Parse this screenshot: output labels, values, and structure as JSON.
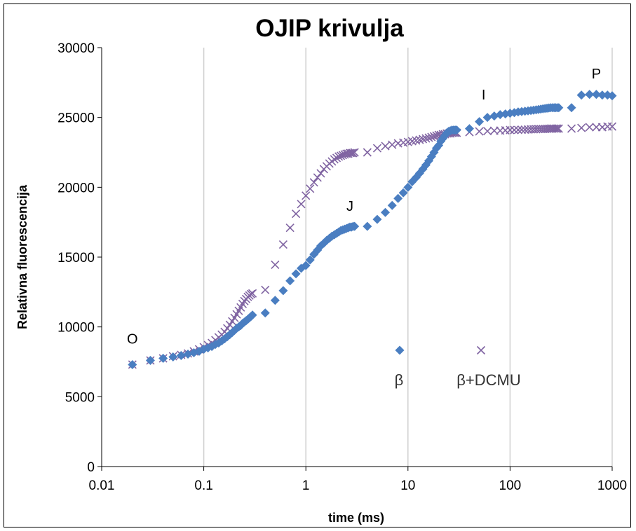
{
  "chart_data": {
    "type": "scatter",
    "title": "OJIP krivulja",
    "xlabel": "time (ms)",
    "ylabel": "Relativna fluorescencija",
    "xscale": "log",
    "xlim": [
      0.01,
      1000
    ],
    "ylim": [
      0,
      30000
    ],
    "xticks": [
      0.01,
      0.1,
      1,
      10,
      100,
      1000
    ],
    "xtick_labels": [
      "0.01",
      "0.1",
      "1",
      "10",
      "100",
      "1000"
    ],
    "yticks": [
      0,
      5000,
      10000,
      15000,
      20000,
      25000,
      30000
    ],
    "ytick_labels": [
      "0",
      "5000",
      "10000",
      "15000",
      "20000",
      "25000",
      "30000"
    ],
    "grid": "vertical",
    "legend_position": "inside-center-right",
    "series": [
      {
        "name": "β",
        "marker": "diamond",
        "color": "#4a7ec1",
        "x": [
          0.02,
          0.03,
          0.04,
          0.05,
          0.06,
          0.07,
          0.08,
          0.09,
          0.1,
          0.11,
          0.12,
          0.13,
          0.14,
          0.15,
          0.16,
          0.17,
          0.18,
          0.19,
          0.2,
          0.21,
          0.22,
          0.23,
          0.24,
          0.25,
          0.26,
          0.27,
          0.28,
          0.29,
          0.3,
          0.4,
          0.5,
          0.6,
          0.7,
          0.8,
          0.9,
          1.0,
          1.1,
          1.2,
          1.3,
          1.4,
          1.5,
          1.6,
          1.7,
          1.8,
          1.9,
          2.0,
          2.1,
          2.2,
          2.3,
          2.4,
          2.5,
          2.6,
          2.7,
          2.8,
          2.9,
          3.0,
          4,
          5,
          6,
          7,
          8,
          9,
          10,
          11,
          12,
          13,
          14,
          15,
          16,
          17,
          18,
          19,
          20,
          21,
          22,
          23,
          24,
          25,
          26,
          27,
          28,
          29,
          30,
          40,
          50,
          60,
          70,
          80,
          90,
          100,
          110,
          120,
          130,
          140,
          150,
          160,
          170,
          180,
          190,
          200,
          210,
          220,
          230,
          240,
          250,
          260,
          270,
          280,
          290,
          300,
          400,
          500,
          600,
          700,
          800,
          900,
          1000
        ],
        "y": [
          7300,
          7600,
          7750,
          7850,
          7950,
          8050,
          8150,
          8250,
          8400,
          8500,
          8600,
          8750,
          8850,
          9000,
          9150,
          9300,
          9450,
          9600,
          9750,
          9900,
          10000,
          10100,
          10250,
          10350,
          10450,
          10550,
          10650,
          10750,
          10850,
          11000,
          11900,
          12600,
          13300,
          13800,
          14200,
          14400,
          14800,
          15200,
          15500,
          15800,
          16000,
          16200,
          16350,
          16500,
          16600,
          16700,
          16800,
          16900,
          16950,
          17000,
          17050,
          17100,
          17150,
          17150,
          17200,
          17200,
          17200,
          17700,
          18200,
          18700,
          19200,
          19600,
          20000,
          20400,
          20700,
          21000,
          21300,
          21600,
          21900,
          22200,
          22500,
          22800,
          23000,
          23300,
          23500,
          23700,
          23900,
          24000,
          24050,
          24100,
          24100,
          24100,
          24100,
          24200,
          24700,
          25000,
          25100,
          25200,
          25250,
          25300,
          25350,
          25400,
          25420,
          25450,
          25470,
          25500,
          25520,
          25550,
          25570,
          25600,
          25620,
          25640,
          25660,
          25680,
          25700,
          25700,
          25700,
          25700,
          25700,
          25700,
          25700,
          26600,
          26650,
          26650,
          26600,
          26600,
          26550
        ]
      },
      {
        "name": "β+DCMU",
        "marker": "x",
        "color": "#8064a2",
        "x": [
          0.02,
          0.03,
          0.04,
          0.05,
          0.06,
          0.07,
          0.08,
          0.09,
          0.1,
          0.11,
          0.12,
          0.13,
          0.14,
          0.15,
          0.16,
          0.17,
          0.18,
          0.19,
          0.2,
          0.21,
          0.22,
          0.23,
          0.24,
          0.25,
          0.26,
          0.27,
          0.28,
          0.29,
          0.3,
          0.4,
          0.5,
          0.6,
          0.7,
          0.8,
          0.9,
          1.0,
          1.1,
          1.2,
          1.3,
          1.4,
          1.5,
          1.6,
          1.7,
          1.8,
          1.9,
          2.0,
          2.1,
          2.2,
          2.3,
          2.4,
          2.5,
          2.6,
          2.7,
          2.8,
          2.9,
          3.0,
          4,
          5,
          6,
          7,
          8,
          9,
          10,
          11,
          12,
          13,
          14,
          15,
          16,
          17,
          18,
          19,
          20,
          21,
          22,
          23,
          24,
          25,
          26,
          27,
          28,
          29,
          30,
          40,
          50,
          60,
          70,
          80,
          90,
          100,
          110,
          120,
          130,
          140,
          150,
          160,
          170,
          180,
          190,
          200,
          210,
          220,
          230,
          240,
          250,
          260,
          270,
          280,
          290,
          300,
          400,
          500,
          600,
          700,
          800,
          900,
          1000
        ],
        "y": [
          7300,
          7600,
          7750,
          7900,
          8000,
          8100,
          8250,
          8400,
          8550,
          8700,
          8850,
          9050,
          9250,
          9450,
          9650,
          9900,
          10150,
          10400,
          10650,
          10900,
          11150,
          11400,
          11650,
          11850,
          12000,
          12150,
          12250,
          12350,
          12400,
          12650,
          14450,
          15900,
          17100,
          18100,
          18800,
          19400,
          19900,
          20350,
          20700,
          21000,
          21300,
          21500,
          21700,
          21850,
          22000,
          22100,
          22200,
          22250,
          22300,
          22350,
          22400,
          22400,
          22450,
          22450,
          22450,
          22500,
          22500,
          22800,
          22950,
          23050,
          23150,
          23200,
          23250,
          23300,
          23350,
          23400,
          23450,
          23500,
          23550,
          23600,
          23650,
          23700,
          23750,
          23750,
          23800,
          23800,
          23850,
          23850,
          23850,
          23900,
          23900,
          23900,
          23900,
          23950,
          24000,
          24020,
          24050,
          24060,
          24080,
          24100,
          24100,
          24110,
          24120,
          24130,
          24140,
          24150,
          24150,
          24160,
          24170,
          24170,
          24180,
          24180,
          24190,
          24190,
          24200,
          24200,
          24200,
          24200,
          24200,
          24200,
          24200,
          24250,
          24300,
          24300,
          24300,
          24350,
          24350
        ]
      }
    ],
    "annotations": [
      {
        "text": "O",
        "x": 0.02,
        "y": 8800
      },
      {
        "text": "J",
        "x": 2.7,
        "y": 18300
      },
      {
        "text": "I",
        "x": 55,
        "y": 26300
      },
      {
        "text": "P",
        "x": 700,
        "y": 27800
      }
    ]
  }
}
